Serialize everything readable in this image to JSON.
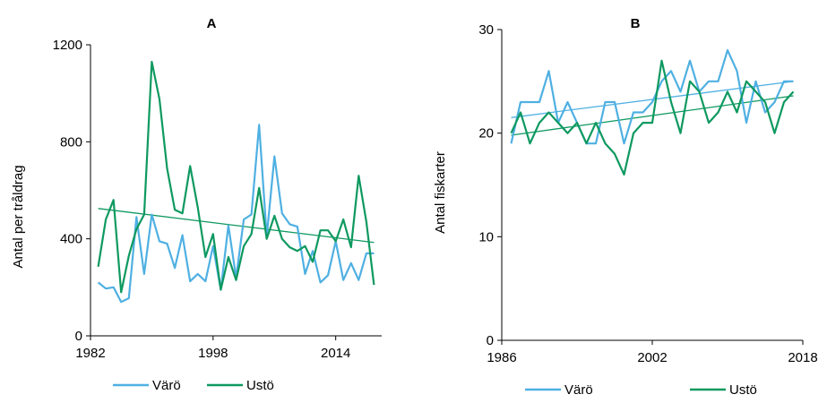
{
  "chart_data": [
    {
      "type": "line",
      "title": "A",
      "xlabel": "",
      "ylabel": "Antal per tråldrag",
      "xlim": [
        1982,
        2020
      ],
      "ylim": [
        0,
        1200
      ],
      "xticks": [
        1982,
        1998,
        2014
      ],
      "yticks": [
        0,
        400,
        800,
        1200
      ],
      "x": [
        1983,
        1984,
        1985,
        1986,
        1987,
        1988,
        1989,
        1990,
        1991,
        1992,
        1993,
        1994,
        1995,
        1996,
        1997,
        1998,
        1999,
        2000,
        2001,
        2002,
        2003,
        2004,
        2005,
        2006,
        2007,
        2008,
        2009,
        2010,
        2011,
        2012,
        2013,
        2014,
        2015,
        2016,
        2017,
        2018,
        2019
      ],
      "series": [
        {
          "name": "Värö",
          "color": "#4fb0e2",
          "values": [
            220,
            195,
            200,
            140,
            155,
            490,
            255,
            500,
            390,
            380,
            280,
            415,
            225,
            255,
            225,
            370,
            190,
            455,
            240,
            480,
            500,
            870,
            410,
            740,
            505,
            460,
            450,
            255,
            350,
            220,
            250,
            390,
            230,
            300,
            230,
            340,
            340
          ]
        },
        {
          "name": "Ustö",
          "color": "#0e9960",
          "values": [
            285,
            480,
            560,
            180,
            330,
            440,
            500,
            1130,
            975,
            690,
            520,
            505,
            700,
            530,
            325,
            420,
            190,
            325,
            230,
            370,
            420,
            610,
            400,
            495,
            400,
            365,
            350,
            370,
            305,
            435,
            435,
            390,
            480,
            365,
            660,
            470,
            210
          ]
        }
      ],
      "trendlines": [
        {
          "color": "#0e9960",
          "x": [
            1983,
            2019
          ],
          "y": [
            525,
            385
          ]
        }
      ],
      "legend": [
        "Värö",
        "Ustö"
      ],
      "legend_position": "bottom",
      "grid": false
    },
    {
      "type": "line",
      "title": "B",
      "xlabel": "",
      "ylabel": "Antal fiskarter",
      "xlim": [
        1986,
        2018
      ],
      "ylim": [
        0,
        30
      ],
      "xticks": [
        1986,
        2002,
        2018
      ],
      "yticks": [
        0,
        10,
        20,
        30
      ],
      "x": [
        1987,
        1988,
        1989,
        1990,
        1991,
        1992,
        1993,
        1994,
        1995,
        1996,
        1997,
        1998,
        1999,
        2000,
        2001,
        2002,
        2003,
        2004,
        2005,
        2006,
        2007,
        2008,
        2009,
        2010,
        2011,
        2012,
        2013,
        2014,
        2015,
        2016,
        2017
      ],
      "series": [
        {
          "name": "Värö",
          "color": "#4fb0e2",
          "values": [
            19,
            23,
            23,
            23,
            26,
            21,
            23,
            21,
            19,
            19,
            23,
            23,
            19,
            22,
            22,
            23,
            25,
            26,
            24,
            27,
            24,
            25,
            25,
            28,
            26,
            21,
            25,
            22,
            23,
            25,
            25
          ]
        },
        {
          "name": "Ustö",
          "color": "#0e9960",
          "values": [
            20,
            22,
            19,
            21,
            22,
            21,
            20,
            21,
            19,
            21,
            19,
            18,
            16,
            20,
            21,
            21,
            27,
            23,
            20,
            25,
            24,
            21,
            22,
            24,
            22,
            25,
            24,
            23,
            20,
            23,
            24
          ]
        }
      ],
      "trendlines": [
        {
          "color": "#4fb0e2",
          "x": [
            1987,
            2017
          ],
          "y": [
            21.5,
            25
          ]
        },
        {
          "color": "#0e9960",
          "x": [
            1987,
            2017
          ],
          "y": [
            19.8,
            23.6
          ]
        }
      ],
      "legend": [
        "Värö",
        "Ustö"
      ],
      "legend_position": "bottom",
      "grid": false
    }
  ]
}
